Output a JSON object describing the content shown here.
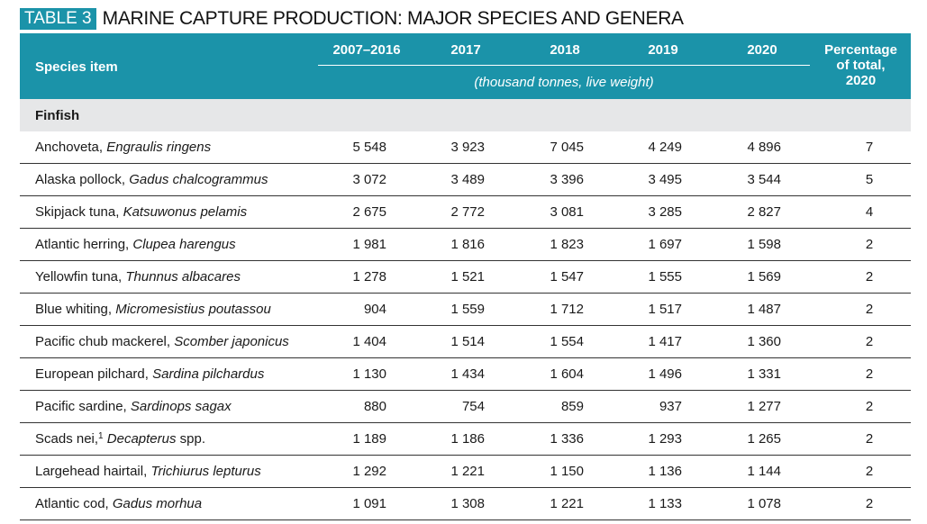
{
  "title": {
    "badge": "TABLE 3",
    "text": "MARINE CAPTURE PRODUCTION: MAJOR SPECIES AND GENERA"
  },
  "header": {
    "species_label": "Species item",
    "years": [
      "2007–2016",
      "2017",
      "2018",
      "2019",
      "2020"
    ],
    "unit": "(thousand tonnes, live weight)",
    "pct_line1": "Percentage",
    "pct_line2": "of total,",
    "pct_line3": "2020"
  },
  "group": {
    "label": "Finfish"
  },
  "rows": [
    {
      "common": "Anchoveta, ",
      "sci": "Engraulis ringens",
      "sup": "",
      "suffix": "",
      "v": [
        "5 548",
        "3 923",
        "7 045",
        "4 249",
        "4 896"
      ],
      "pct": "7"
    },
    {
      "common": "Alaska pollock, ",
      "sci": "Gadus chalcogrammus",
      "sup": "",
      "suffix": "",
      "v": [
        "3 072",
        "3 489",
        "3 396",
        "3 495",
        "3 544"
      ],
      "pct": "5"
    },
    {
      "common": "Skipjack tuna, ",
      "sci": "Katsuwonus pelamis",
      "sup": "",
      "suffix": "",
      "v": [
        "2 675",
        "2 772",
        "3 081",
        "3 285",
        "2 827"
      ],
      "pct": "4"
    },
    {
      "common": "Atlantic herring, ",
      "sci": "Clupea harengus",
      "sup": "",
      "suffix": "",
      "v": [
        "1 981",
        "1 816",
        "1 823",
        "1 697",
        "1 598"
      ],
      "pct": "2"
    },
    {
      "common": "Yellowfin tuna, ",
      "sci": "Thunnus albacares",
      "sup": "",
      "suffix": "",
      "v": [
        "1 278",
        "1 521",
        "1 547",
        "1 555",
        "1 569"
      ],
      "pct": "2"
    },
    {
      "common": "Blue whiting, ",
      "sci": "Micromesistius poutassou",
      "sup": "",
      "suffix": "",
      "v": [
        "904",
        "1 559",
        "1 712",
        "1 517",
        "1 487"
      ],
      "pct": "2"
    },
    {
      "common": "Pacific chub mackerel, ",
      "sci": "Scomber japonicus",
      "sup": "",
      "suffix": "",
      "v": [
        "1 404",
        "1 514",
        "1 554",
        "1 417",
        "1 360"
      ],
      "pct": "2"
    },
    {
      "common": "European pilchard, ",
      "sci": "Sardina pilchardus",
      "sup": "",
      "suffix": "",
      "v": [
        "1 130",
        "1 434",
        "1 604",
        "1 496",
        "1 331"
      ],
      "pct": "2"
    },
    {
      "common": "Pacific sardine, ",
      "sci": "Sardinops sagax",
      "sup": "",
      "suffix": "",
      "v": [
        "880",
        "754",
        "859",
        "937",
        "1 277"
      ],
      "pct": "2"
    },
    {
      "common": "Scads nei,",
      "sci": "Decapterus",
      "sup": "1",
      "suffix": " spp.",
      "v": [
        "1 189",
        "1 186",
        "1 336",
        "1 293",
        "1 265"
      ],
      "pct": "2"
    },
    {
      "common": "Largehead hairtail, ",
      "sci": "Trichiurus lepturus",
      "sup": "",
      "suffix": "",
      "v": [
        "1 292",
        "1 221",
        "1 150",
        "1 136",
        "1 144"
      ],
      "pct": "2"
    },
    {
      "common": "Atlantic cod, ",
      "sci": "Gadus morhua",
      "sup": "",
      "suffix": "",
      "v": [
        "1 091",
        "1 308",
        "1 221",
        "1 133",
        "1 078"
      ],
      "pct": "2"
    }
  ]
}
